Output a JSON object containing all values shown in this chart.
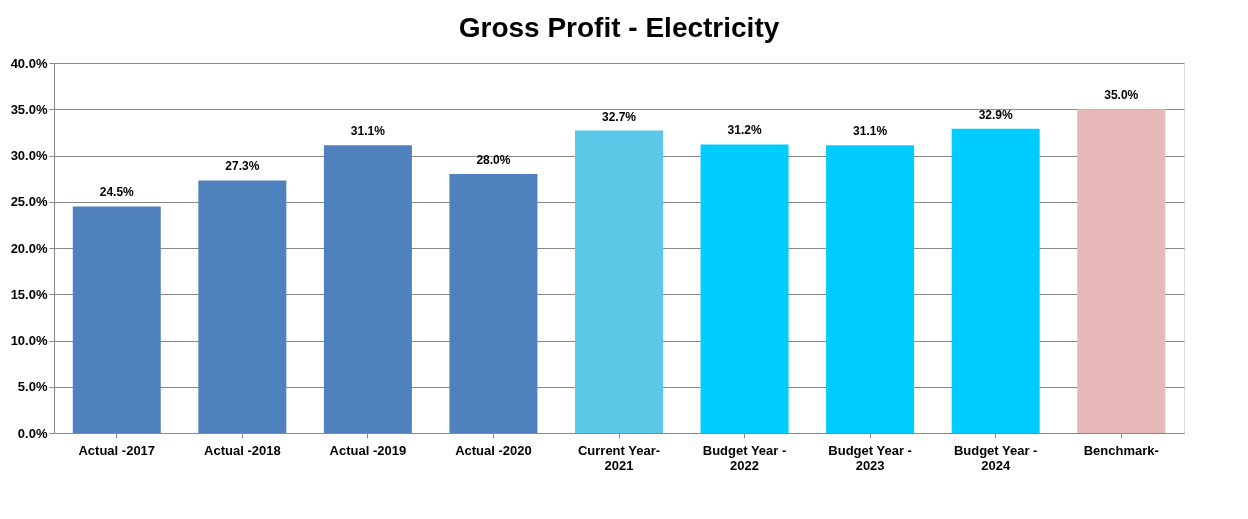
{
  "chart_data": {
    "type": "bar",
    "title": "Gross Profit - Electricity",
    "categories": [
      "Actual -2017",
      "Actual -2018",
      "Actual -2019",
      "Actual -2020",
      "Current Year-\n2021",
      "Budget Year -\n2022",
      "Budget Year -\n2023",
      "Budget Year -\n2024",
      "Benchmark-"
    ],
    "values": [
      24.5,
      27.3,
      31.1,
      28.0,
      32.7,
      31.2,
      31.1,
      32.9,
      35.0
    ],
    "value_labels": [
      "24.5%",
      "27.3%",
      "31.1%",
      "28.0%",
      "32.7%",
      "31.2%",
      "31.1%",
      "32.9%",
      "35.0%"
    ],
    "colors": [
      "#4f81bd",
      "#4f81bd",
      "#4f81bd",
      "#4f81bd",
      "#5cc8e8",
      "#00ccff",
      "#00ccff",
      "#00ccff",
      "#e6b8b7"
    ],
    "ylim": [
      0,
      40
    ],
    "yticks": [
      {
        "value": 0,
        "label": "0.0%"
      },
      {
        "value": 5,
        "label": "5.0%"
      },
      {
        "value": 10,
        "label": "10.0%"
      },
      {
        "value": 15,
        "label": "15.0%"
      },
      {
        "value": 20,
        "label": "20.0%"
      },
      {
        "value": 25,
        "label": "25.0%"
      },
      {
        "value": 30,
        "label": "30.0%"
      },
      {
        "value": 35,
        "label": "35.0%"
      },
      {
        "value": 40,
        "label": "40.0%"
      }
    ],
    "grid": "y",
    "legend": false
  }
}
